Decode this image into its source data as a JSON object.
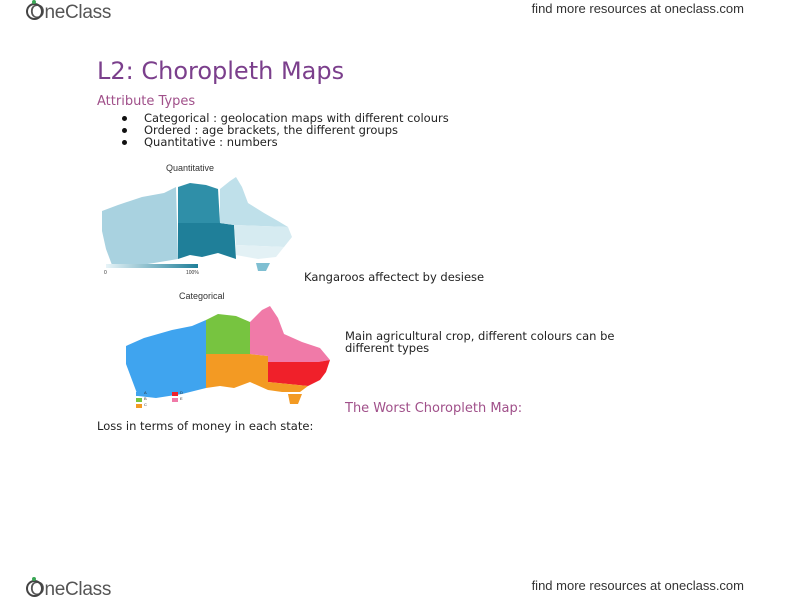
{
  "header": {
    "logo_text": "OneClass",
    "link_text": "find more resources at oneclass.com"
  },
  "footer": {
    "logo_text": "OneClass",
    "link_text": "find more resources at oneclass.com"
  },
  "title": "L2: Choropleth Maps",
  "attribute_heading": "Attribute Types",
  "bullets": [
    "Categorical : geolocation maps with  different colours",
    "Ordered : age brackets, the different groups",
    "Quantitative :  numbers"
  ],
  "quant_map": {
    "label": "Quantitative",
    "scale_min": "0",
    "scale_max": "100%",
    "caption": "Kangaroos affectect by desiese"
  },
  "cat_map": {
    "label": "Categorical",
    "legend": [
      "A",
      "B",
      "C",
      "D",
      "E"
    ],
    "caption_line1": "Main agricultural crop, different colours can be",
    "caption_line2": "different types"
  },
  "worst_heading": "The Worst Choropleth Map:",
  "loss_text": "Loss in terms of money in each state:"
}
